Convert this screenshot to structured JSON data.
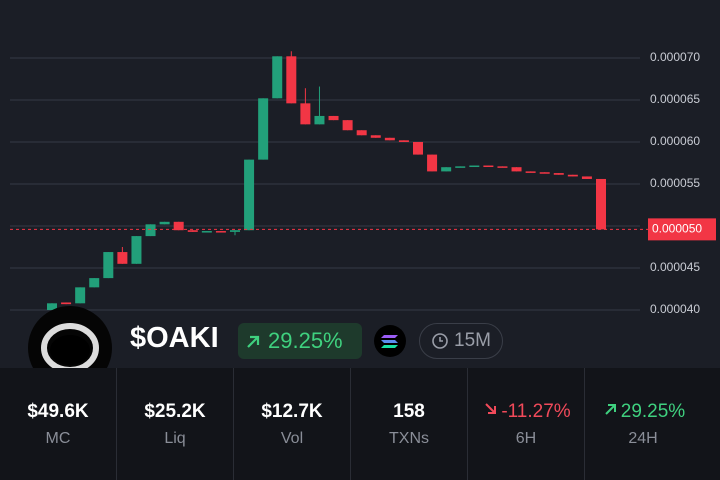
{
  "chart_data": {
    "type": "candlestick",
    "series": {
      "open": [
        4e-05,
        4.09e-05,
        4.08e-05,
        4.27e-05,
        4.38e-05,
        4.69e-05,
        4.55e-05,
        4.88e-05,
        5.02e-05,
        5.05e-05,
        4.95e-05,
        4.93e-05,
        4.94e-05,
        4.93e-05,
        4.95e-05,
        5.79e-05,
        6.52e-05,
        7.02e-05,
        6.46e-05,
        6.21e-05,
        6.31e-05,
        6.26e-05,
        6.14e-05,
        6.08e-05,
        6.05e-05,
        6.02e-05,
        6e-05,
        5.85e-05,
        5.65e-05,
        5.7e-05,
        5.71e-05,
        5.72e-05,
        5.71e-05,
        5.7e-05,
        5.65e-05,
        5.64e-05,
        5.63e-05,
        5.61e-05,
        5.59e-05,
        5.56e-05
      ],
      "high": [
        4.08e-05,
        4.09e-05,
        4.27e-05,
        4.38e-05,
        4.69e-05,
        4.75e-05,
        4.88e-05,
        5.02e-05,
        5.05e-05,
        5.05e-05,
        4.95e-05,
        4.94e-05,
        4.94e-05,
        4.95e-05,
        5.79e-05,
        6.52e-05,
        7.02e-05,
        7.08e-05,
        6.64e-05,
        6.66e-05,
        6.31e-05,
        6.26e-05,
        6.14e-05,
        6.08e-05,
        6.05e-05,
        6.02e-05,
        6e-05,
        5.85e-05,
        5.7e-05,
        5.71e-05,
        5.72e-05,
        5.72e-05,
        5.71e-05,
        5.7e-05,
        5.65e-05,
        5.64e-05,
        5.63e-05,
        5.61e-05,
        5.59e-05,
        5.56e-05
      ],
      "low": [
        4e-05,
        4.07e-05,
        4.08e-05,
        4.27e-05,
        4.38e-05,
        4.55e-05,
        4.55e-05,
        4.88e-05,
        5.02e-05,
        4.95e-05,
        4.93e-05,
        4.93e-05,
        4.93e-05,
        4.89e-05,
        4.95e-05,
        5.79e-05,
        6.52e-05,
        6.46e-05,
        6.21e-05,
        6.21e-05,
        6.26e-05,
        6.14e-05,
        6.08e-05,
        6.05e-05,
        6.02e-05,
        6e-05,
        5.85e-05,
        5.65e-05,
        5.65e-05,
        5.7e-05,
        5.71e-05,
        5.71e-05,
        5.7e-05,
        5.65e-05,
        5.64e-05,
        5.63e-05,
        5.61e-05,
        5.59e-05,
        5.56e-05,
        4.96e-05
      ],
      "close": [
        4.08e-05,
        4.07e-05,
        4.27e-05,
        4.38e-05,
        4.69e-05,
        4.55e-05,
        4.88e-05,
        5.02e-05,
        5.05e-05,
        4.95e-05,
        4.93e-05,
        4.94e-05,
        4.93e-05,
        4.95e-05,
        5.79e-05,
        6.52e-05,
        7.02e-05,
        6.46e-05,
        6.21e-05,
        6.31e-05,
        6.26e-05,
        6.14e-05,
        6.08e-05,
        6.05e-05,
        6.02e-05,
        6e-05,
        5.85e-05,
        5.65e-05,
        5.7e-05,
        5.71e-05,
        5.72e-05,
        5.71e-05,
        5.7e-05,
        5.65e-05,
        5.64e-05,
        5.63e-05,
        5.61e-05,
        5.59e-05,
        5.56e-05,
        4.96e-05
      ]
    },
    "up_color": "#22a07a",
    "down_color": "#f23645",
    "last_price": {
      "value": 4.96e-05,
      "label": "0.000050"
    },
    "ylim": [
      3.31e-05,
      7.69e-05
    ],
    "yticks": [
      {
        "value": 4e-05,
        "label": "0.000040"
      },
      {
        "value": 4.5e-05,
        "label": "0.000045"
      },
      {
        "value": 5e-05,
        "label": "0.000050"
      },
      {
        "value": 5.5e-05,
        "label": "0.000055"
      },
      {
        "value": 6e-05,
        "label": "0.000060"
      },
      {
        "value": 6.5e-05,
        "label": "0.000065"
      },
      {
        "value": 7e-05,
        "label": "0.000070"
      }
    ],
    "grid": true
  },
  "token": {
    "name": "$OAKI",
    "change": "29.25%",
    "interval": "15M"
  },
  "stats": [
    {
      "value": "$49.6K",
      "label": "MC"
    },
    {
      "value": "$25.2K",
      "label": "Liq"
    },
    {
      "value": "$12.7K",
      "label": "Vol"
    },
    {
      "value": "158",
      "label": "TXNs"
    },
    {
      "value": "-11.27%",
      "label": "6H"
    },
    {
      "value": "29.25%",
      "label": "24H"
    }
  ]
}
